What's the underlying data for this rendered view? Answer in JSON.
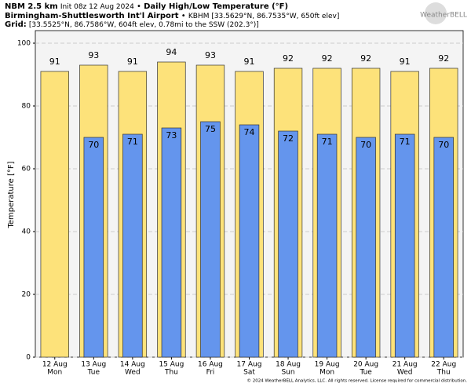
{
  "chart_data": {
    "type": "bar",
    "model": "NBM 2.5 km",
    "init": "Init 08z 12 Aug 2024",
    "separator": "•",
    "title": "Daily High/Low Temperature (°F)",
    "station": "Birmingham-Shuttlesworth Int'l Airport",
    "station_info": "KBHM [33.5629°N, 86.7535°W, 650ft elev]",
    "grid_label": "Grid:",
    "grid_info": "[33.5525°N, 86.7586°W, 604ft elev, 0.78mi to the SSW (202.3°)]",
    "logo": "WeatherBELL",
    "footer": "© 2024 WeatherBELL Analytics, LLC. All rights reserved. License required for commercial distribution.",
    "ylabel": "Temperature [°F]",
    "categories": [
      [
        "12 Aug",
        "Mon"
      ],
      [
        "13 Aug",
        "Tue"
      ],
      [
        "14 Aug",
        "Wed"
      ],
      [
        "15 Aug",
        "Thu"
      ],
      [
        "16 Aug",
        "Fri"
      ],
      [
        "17 Aug",
        "Sat"
      ],
      [
        "18 Aug",
        "Sun"
      ],
      [
        "19 Aug",
        "Mon"
      ],
      [
        "20 Aug",
        "Tue"
      ],
      [
        "21 Aug",
        "Wed"
      ],
      [
        "22 Aug",
        "Thu"
      ]
    ],
    "series": [
      {
        "name": "High",
        "color": "#fde27a",
        "values": [
          91,
          93,
          91,
          94,
          93,
          91,
          92,
          92,
          92,
          91,
          92
        ]
      },
      {
        "name": "Low",
        "color": "#6495ed",
        "values": [
          null,
          70,
          71,
          73,
          75,
          74,
          72,
          71,
          70,
          71,
          70
        ]
      }
    ],
    "ylim": [
      0,
      104
    ],
    "yticks": [
      0,
      20,
      40,
      60,
      80,
      100
    ],
    "grid": true
  }
}
